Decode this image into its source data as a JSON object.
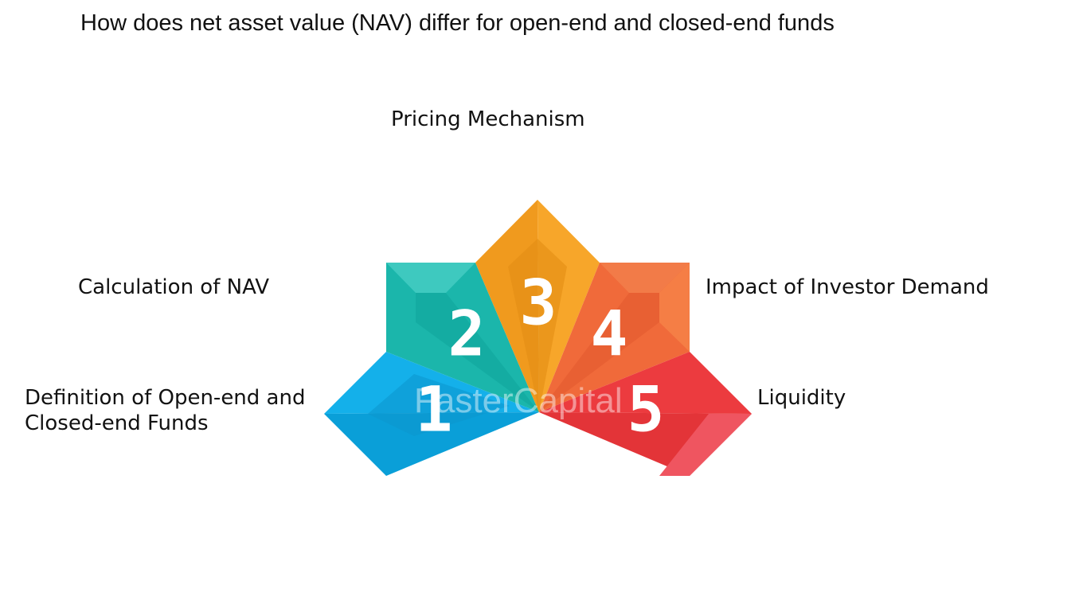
{
  "header": {
    "title": "How does net asset value (NAV) differ for open-end and closed-end funds"
  },
  "items": [
    {
      "number": "1",
      "label": "Definition of Open-end and",
      "label_line2": "Closed-end Funds"
    },
    {
      "number": "2",
      "label": "Calculation of NAV"
    },
    {
      "number": "3",
      "label": "Pricing Mechanism"
    },
    {
      "number": "4",
      "label": "Impact of Investor Demand"
    },
    {
      "number": "5",
      "label": "Liquidity"
    }
  ],
  "watermark": "FasterCapital"
}
